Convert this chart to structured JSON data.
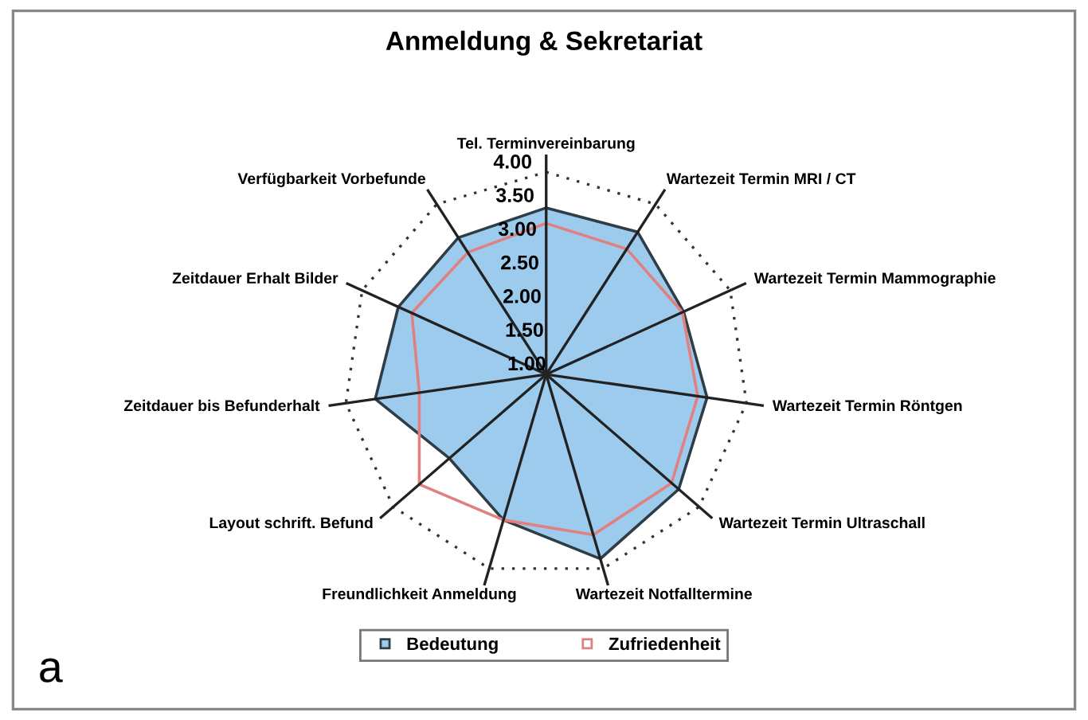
{
  "chart_data": {
    "type": "radar",
    "title": "Anmeldung & Sekretariat",
    "categories": [
      "Tel. Terminvereinbarung",
      "Wartezeit Termin MRI / CT",
      "Wartezeit Termin Mammographie",
      "Wartezeit Termin Röntgen",
      "Wartezeit Termin Ultraschall",
      "Wartezeit Notfalltermine",
      "Freundlichkeit Anmeldung",
      "Layout schrift. Befund",
      "Zeitdauer bis Befunderhalt",
      "Zeitdauer Erhalt Bilder",
      "Verfügbarkeit Vorbefunde"
    ],
    "series": [
      {
        "name": "Bedeutung",
        "type": "area",
        "color": "#9ccbee",
        "values": [
          3.47,
          3.51,
          3.24,
          3.41,
          3.6,
          3.85,
          3.25,
          2.9,
          3.56,
          3.41,
          3.41
        ]
      },
      {
        "name": "Zufriedenheit",
        "color": "#e08080",
        "values": [
          3.24,
          3.21,
          3.22,
          3.27,
          3.46,
          3.48,
          3.25,
          3.49,
          2.9,
          3.19,
          3.15
        ]
      }
    ],
    "ylim": [
      1,
      4
    ],
    "yticks": [
      {
        "value": 1,
        "label": "1.00"
      },
      {
        "value": 1.5,
        "label": "1.50"
      },
      {
        "value": 2,
        "label": "2.00"
      },
      {
        "value": 2.5,
        "label": "2.50"
      },
      {
        "value": 3,
        "label": "3.00"
      },
      {
        "value": 3.5,
        "label": "3.50"
      },
      {
        "value": 4,
        "label": "4.00"
      }
    ],
    "legend": "bottom",
    "annotations": [
      "a"
    ]
  }
}
